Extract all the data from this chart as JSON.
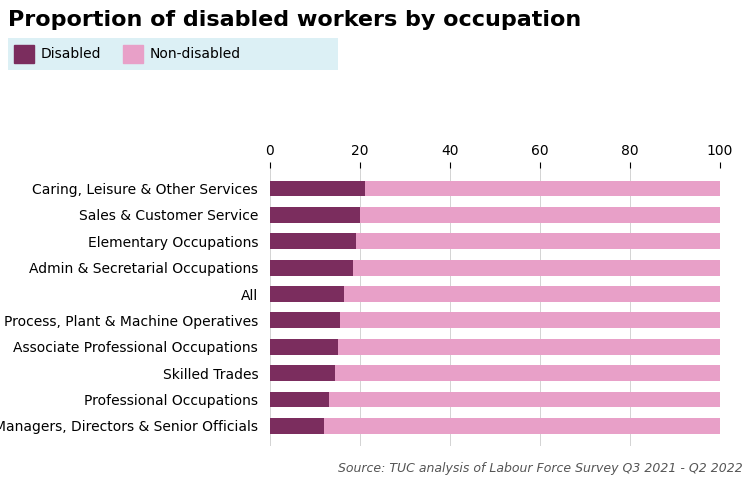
{
  "title": "Proportion of disabled workers by occupation",
  "categories": [
    "Caring, Leisure & Other Services",
    "Sales & Customer Service",
    "Elementary Occupations",
    "Admin & Secretarial Occupations",
    "All",
    "Process, Plant & Machine Operatives",
    "Associate Professional Occupations",
    "Skilled Trades",
    "Professional Occupations",
    "Managers, Directors & Senior Officials"
  ],
  "disabled_pct": [
    21.0,
    20.0,
    19.0,
    18.5,
    16.5,
    15.5,
    15.0,
    14.5,
    13.0,
    12.0
  ],
  "disabled_color": "#7B2D5E",
  "non_disabled_color": "#E8A0C8",
  "legend_disabled_label": "Disabled",
  "legend_non_disabled_label": "Non-disabled",
  "xlim": [
    0,
    100
  ],
  "xtick_values": [
    0,
    20,
    40,
    60,
    80,
    100
  ],
  "source_text": "Source: TUC analysis of Labour Force Survey Q3 2021 - Q2 2022",
  "title_fontsize": 16,
  "label_fontsize": 10,
  "tick_fontsize": 10,
  "source_fontsize": 9,
  "background_color": "#FFFFFF",
  "legend_bg_color": "#DCF0F5",
  "bar_height": 0.6,
  "figsize": [
    7.5,
    4.8
  ],
  "dpi": 100
}
